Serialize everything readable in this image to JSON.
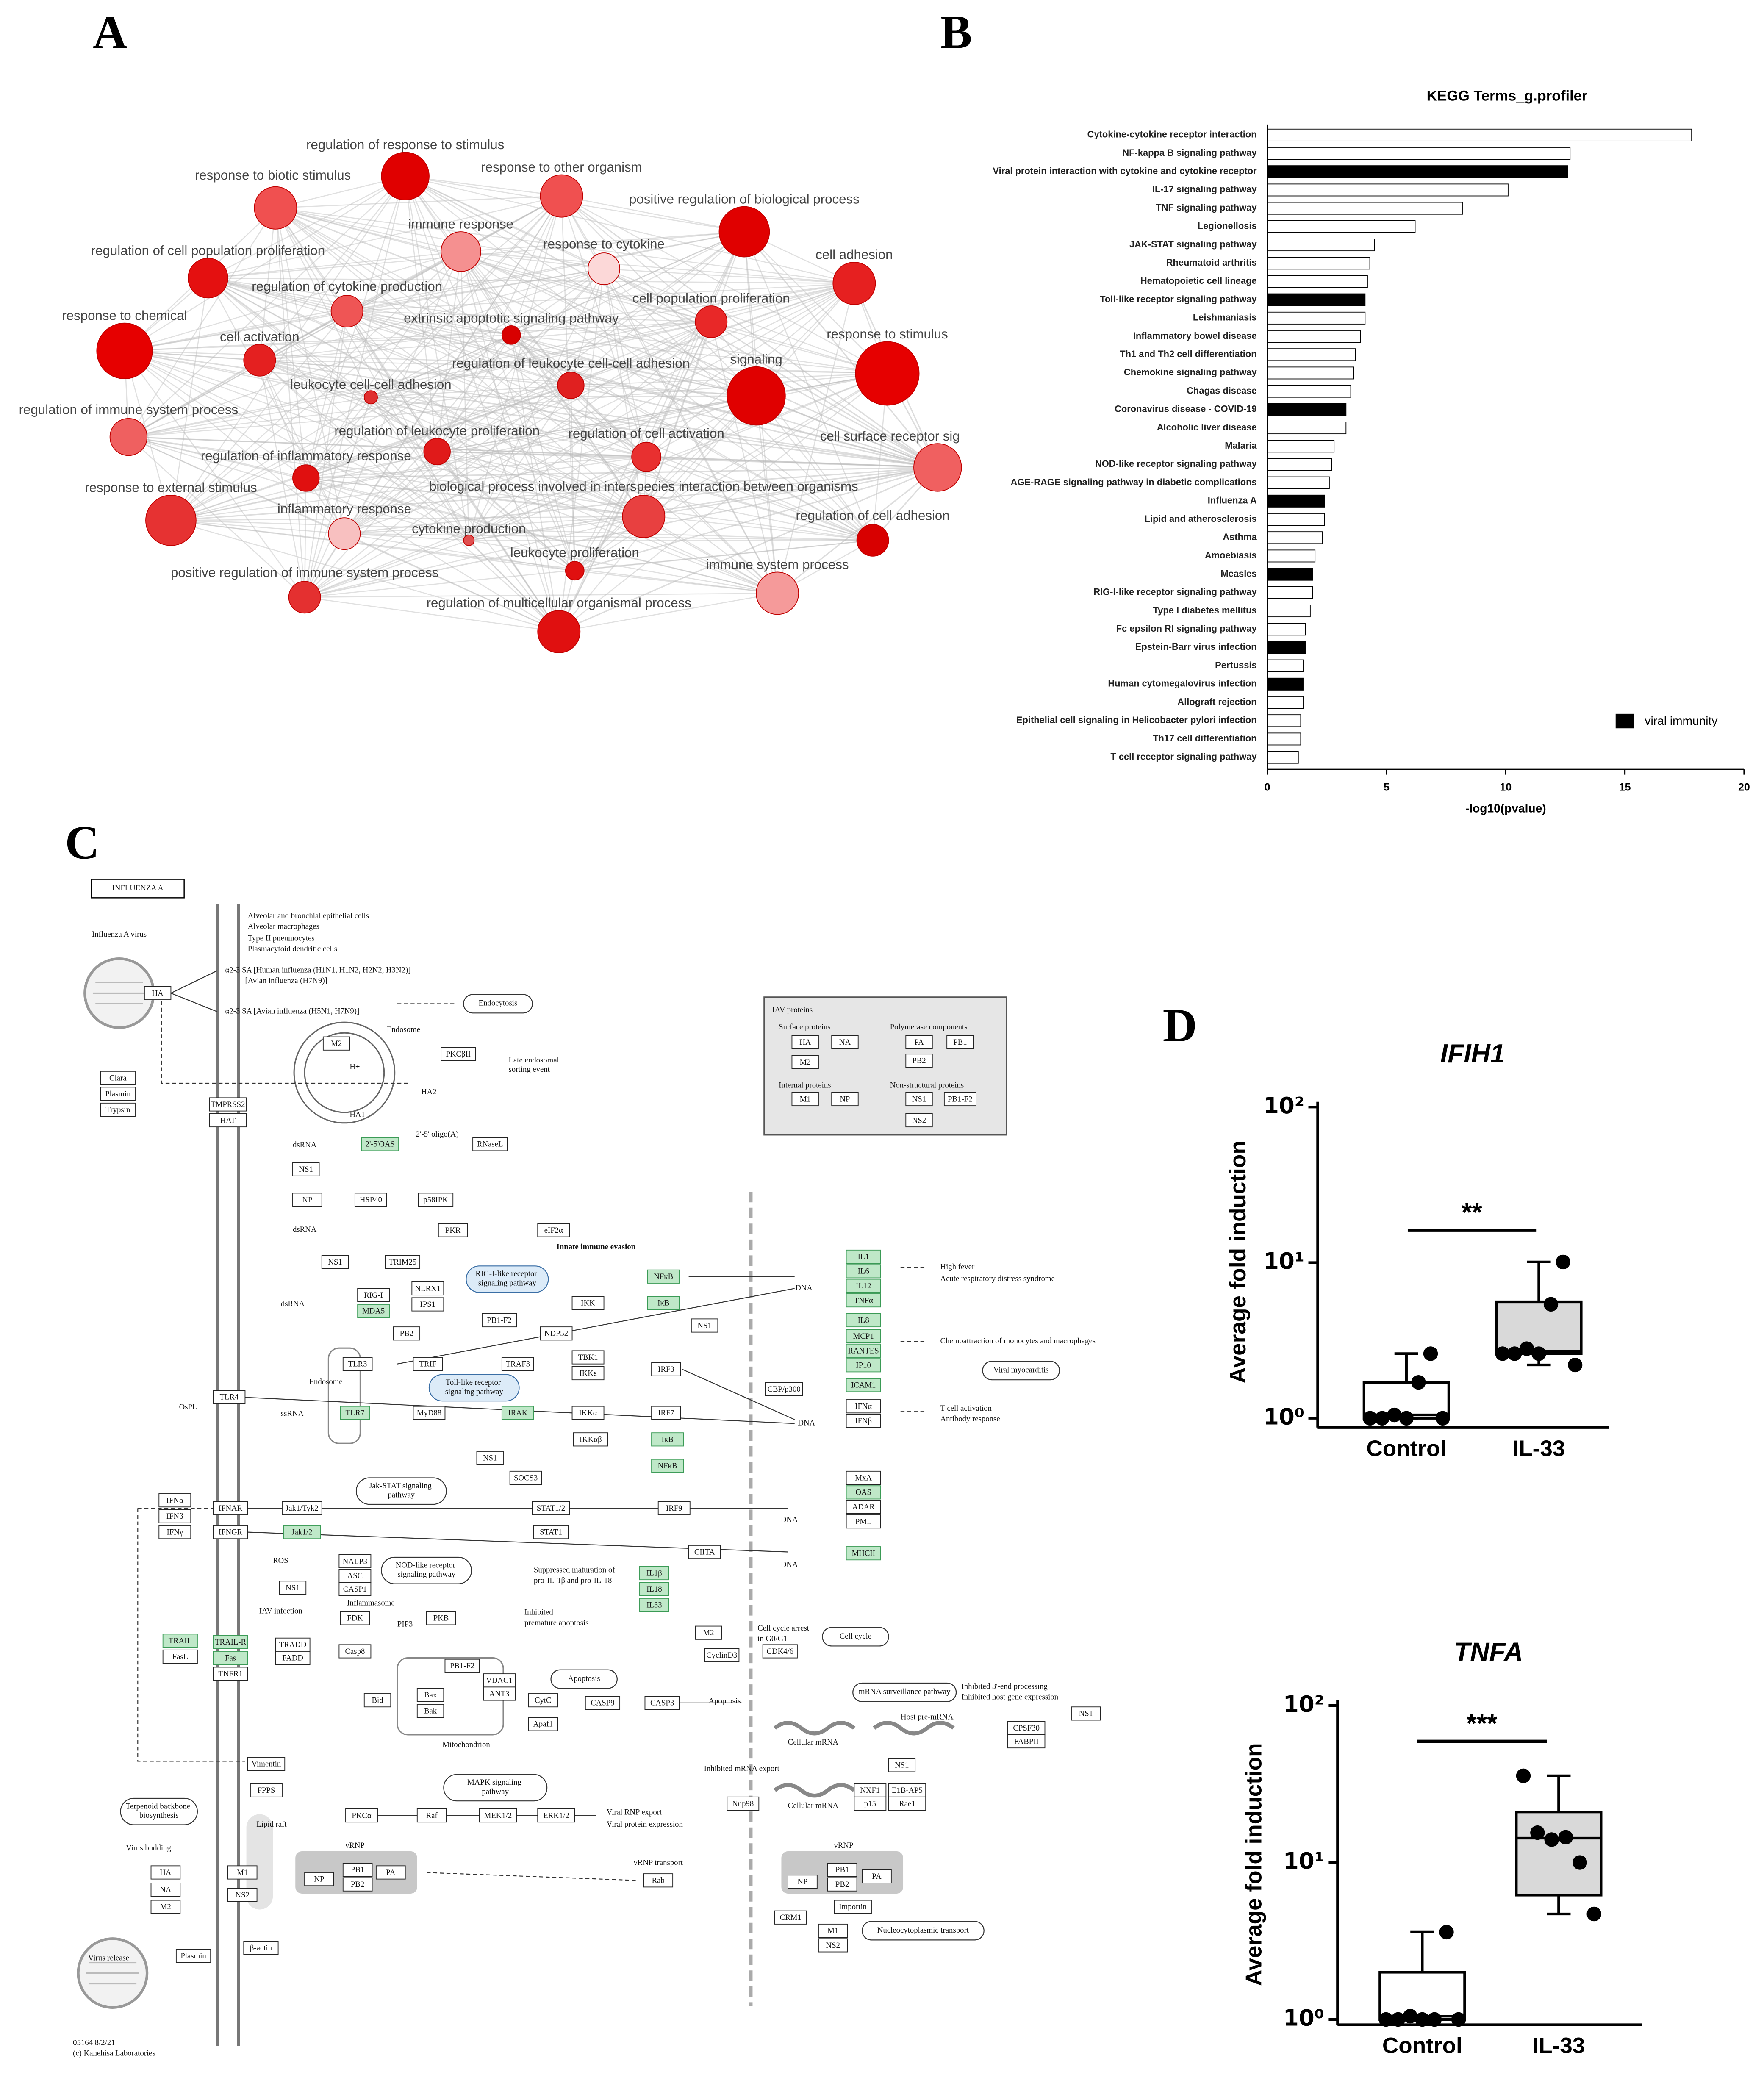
{
  "panels": [
    "A",
    "B",
    "C",
    "D"
  ],
  "network": {
    "nodes": [
      {
        "label": "regulation of response to stimulus",
        "color": "#e00000"
      },
      {
        "label": "response to biotic stimulus",
        "color": "#f05050"
      },
      {
        "label": "response to other organism",
        "color": "#f05050"
      },
      {
        "label": "positive regulation of biological process",
        "color": "#e00000"
      },
      {
        "label": "immune response",
        "color": "#f59090"
      },
      {
        "label": "response to cytokine",
        "color": "#fcd8d8"
      },
      {
        "label": "cell adhesion",
        "color": "#e62020"
      },
      {
        "label": "regulation of cell population proliferation",
        "color": "#e41010"
      },
      {
        "label": "regulation of cytokine production",
        "color": "#ef5555"
      },
      {
        "label": "cell population proliferation",
        "color": "#e82828"
      },
      {
        "label": "response to chemical",
        "color": "#e60000"
      },
      {
        "label": "extrinsic apoptotic signaling pathway",
        "color": "#d80000"
      },
      {
        "label": "response to stimulus",
        "color": "#e60000"
      },
      {
        "label": "cell activation",
        "color": "#e42020"
      },
      {
        "label": "regulation of leukocyte cell-cell adhesion",
        "color": "#e02020"
      },
      {
        "label": "signaling",
        "color": "#e00000"
      },
      {
        "label": "leukocyte cell-cell adhesion",
        "color": "#e03030"
      },
      {
        "label": "regulation of immune system process",
        "color": "#ef6060"
      },
      {
        "label": "cell surface receptor sig",
        "color": "#f06060"
      },
      {
        "label": "regulation of leukocyte proliferation",
        "color": "#e01a1a"
      },
      {
        "label": "regulation of cell activation",
        "color": "#e83030"
      },
      {
        "label": "regulation of inflammatory response",
        "color": "#e01010"
      },
      {
        "label": "biological process involved in interspecies interaction between organisms",
        "color": "#e84040"
      },
      {
        "label": "response to external stimulus",
        "color": "#e63232"
      },
      {
        "label": "inflammatory response",
        "color": "#f8c0c0"
      },
      {
        "label": "cytokine production",
        "color": "#e05050"
      },
      {
        "label": "regulation of cell adhesion",
        "color": "#d80000"
      },
      {
        "label": "leukocyte proliferation",
        "color": "#e01010"
      },
      {
        "label": "immune system process",
        "color": "#f59a9a"
      },
      {
        "label": "positive regulation of immune system process",
        "color": "#e43030"
      },
      {
        "label": "regulation of multicellular organismal process",
        "color": "#e01010"
      }
    ]
  },
  "chart_data": [
    {
      "type": "bar",
      "orientation": "horizontal",
      "title": "KEGG Terms_g.profiler",
      "xlabel": "-log10(pvalue)",
      "categories": [
        "Cytokine-cytokine receptor interaction",
        "NF-kappa B signaling pathway",
        "Viral protein interaction with cytokine and cytokine receptor",
        "IL-17 signaling pathway",
        "TNF signaling pathway",
        "Legionellosis",
        "JAK-STAT signaling pathway",
        "Rheumatoid arthritis",
        "Hematopoietic cell lineage",
        "Toll-like receptor signaling pathway",
        "Leishmaniasis",
        "Inflammatory bowel disease",
        "Th1 and Th2 cell differentiation",
        "Chemokine signaling pathway",
        "Chagas disease",
        "Coronavirus disease - COVID-19",
        "Alcoholic liver disease",
        "Malaria",
        "NOD-like receptor signaling pathway",
        "AGE-RAGE signaling pathway in diabetic complications",
        "Influenza A",
        "Lipid and atherosclerosis",
        "Asthma",
        "Amoebiasis",
        "Measles",
        "RIG-I-like receptor signaling pathway",
        "Type I diabetes mellitus",
        "Fc epsilon RI signaling pathway",
        "Epstein-Barr virus infection",
        "Pertussis",
        "Human cytomegalovirus infection",
        "Allograft rejection",
        "Epithelial cell signaling in Helicobacter pylori infection",
        "Th17 cell differentiation",
        "T cell receptor signaling pathway"
      ],
      "values": [
        17.8,
        12.7,
        12.6,
        10.1,
        8.2,
        6.2,
        4.5,
        4.3,
        4.2,
        4.1,
        4.1,
        3.9,
        3.7,
        3.6,
        3.5,
        3.3,
        3.3,
        2.8,
        2.7,
        2.6,
        2.4,
        2.4,
        2.3,
        2.0,
        1.9,
        1.9,
        1.8,
        1.6,
        1.6,
        1.5,
        1.5,
        1.5,
        1.4,
        1.4,
        1.3
      ],
      "colors": [
        "#ffffff",
        "#ffffff",
        "#000000",
        "#ffffff",
        "#ffffff",
        "#ffffff",
        "#ffffff",
        "#ffffff",
        "#ffffff",
        "#000000",
        "#ffffff",
        "#ffffff",
        "#ffffff",
        "#ffffff",
        "#ffffff",
        "#000000",
        "#ffffff",
        "#ffffff",
        "#ffffff",
        "#ffffff",
        "#000000",
        "#ffffff",
        "#ffffff",
        "#ffffff",
        "#000000",
        "#ffffff",
        "#ffffff",
        "#ffffff",
        "#000000",
        "#ffffff",
        "#000000",
        "#ffffff",
        "#ffffff",
        "#ffffff",
        "#ffffff"
      ],
      "xlim": [
        0,
        20
      ],
      "xticks": [
        0,
        5,
        10,
        15,
        20
      ],
      "legend": {
        "label": "viral immunity",
        "color": "#000000",
        "position": "lower right"
      }
    },
    {
      "type": "box",
      "title": "IFIH1",
      "ylabel": "Average fold induction",
      "log_y": true,
      "ylim": [
        1,
        100
      ],
      "yticks": [
        {
          "value": 1,
          "label": "10⁰"
        },
        {
          "value": 10,
          "label": "10¹"
        },
        {
          "value": 100,
          "label": "10²"
        }
      ],
      "categories": [
        "Control",
        "IL-33"
      ],
      "colors": [
        "#ffffff",
        "#d9d9d9"
      ],
      "boxes": [
        {
          "min": 1.0,
          "q1": 1.0,
          "median": 1.05,
          "q3": 1.7,
          "max": 2.6,
          "points": [
            1.0,
            1.0,
            1.05,
            1.0,
            1.7,
            2.6,
            1.0
          ]
        },
        {
          "min": 2.2,
          "q1": 2.6,
          "median": 2.7,
          "q3": 5.6,
          "max": 10.1,
          "points": [
            2.6,
            2.6,
            2.8,
            2.6,
            5.4,
            10.1,
            2.2
          ]
        }
      ],
      "significance": "**"
    },
    {
      "type": "box",
      "title": "TNFA",
      "ylabel": "Average fold induction",
      "log_y": true,
      "ylim": [
        1,
        100
      ],
      "yticks": [
        {
          "value": 1,
          "label": "10⁰"
        },
        {
          "value": 10,
          "label": "10¹"
        },
        {
          "value": 100,
          "label": "10²"
        }
      ],
      "categories": [
        "Control",
        "IL-33"
      ],
      "colors": [
        "#ffffff",
        "#d9d9d9"
      ],
      "boxes": [
        {
          "min": 1.0,
          "q1": 1.0,
          "median": 1.05,
          "q3": 2.0,
          "max": 3.6,
          "points": [
            1.0,
            1.0,
            1.05,
            1.0,
            1.0,
            3.6,
            1.0
          ]
        },
        {
          "min": 4.7,
          "q1": 6.2,
          "median": 14.3,
          "q3": 21,
          "max": 35.7,
          "points": [
            35.7,
            15.5,
            14,
            14.5,
            10,
            4.7
          ]
        }
      ],
      "significance": "***"
    }
  ],
  "pathway": {
    "title": "INFLUENZA A",
    "nodes": [
      "HA",
      "Clara",
      "Plasmin",
      "Trypsin",
      "TMPRSS2",
      "HAT",
      "M2",
      "PKCβII",
      "2'-5'OAS",
      "RNaseL",
      "NS1",
      "NP",
      "HSP40",
      "p58IPK",
      "PKR",
      "eIF2α",
      "NS1",
      "TRIM25",
      "RIG-I",
      "MDA5",
      "NLRX1",
      "IPS1",
      "PB1-F2",
      "PB2",
      "NDP52",
      "IKK",
      "NFκB",
      "IκB",
      "NS1",
      "TLR3",
      "TRIF",
      "TRAF3",
      "TBK1",
      "IKKε",
      "IRF3",
      "TLR4",
      "TLR7",
      "MyD88",
      "IRAK",
      "IKKα",
      "IRF7",
      "IKKαβ",
      "IκB",
      "NFκB",
      "NS1",
      "SOCS3",
      "IFNα",
      "IFNβ",
      "IFNγ",
      "IFNAR",
      "IFNGR",
      "Jak1/Tyk2",
      "Jak1/2",
      "STAT1/2",
      "IRF9",
      "STAT1",
      "CIITA",
      "NALP3",
      "ASC",
      "CASP1",
      "NS1",
      "IL1β",
      "IL18",
      "IL33",
      "FDK",
      "PKB",
      "TRAIL",
      "FasL",
      "TRAIL-R",
      "Fas",
      "TNFR1",
      "TRADD",
      "FADD",
      "Casp8",
      "PB1-F2",
      "VDAC1",
      "ANT3",
      "CytC",
      "Bid",
      "Bax",
      "Bak",
      "CASP9",
      "CASP3",
      "Apaf1",
      "M2",
      "CyclinD3",
      "CDK4/6",
      "IL1",
      "IL6",
      "IL12",
      "TNFα",
      "IL8",
      "MCP1",
      "RANTES",
      "IP10",
      "ICAM1",
      "IFNα",
      "IFNβ",
      "MxA",
      "OAS",
      "ADAR",
      "PML",
      "MHCII",
      "CPSF30",
      "FABPII",
      "NS1",
      "NS1",
      "NXF1",
      "E1B-AP5",
      "p15",
      "Rae1",
      "Nup98",
      "Vimentin",
      "FPPS",
      "PKCα",
      "Raf",
      "MEK1/2",
      "ERK1/2",
      "HA",
      "NA",
      "M2",
      "M1",
      "NS2",
      "NP",
      "PB1",
      "PB2",
      "PA",
      "Rab",
      "NP",
      "PB1",
      "PB2",
      "PA",
      "CRM1",
      "M1",
      "NS2",
      "Importin",
      "Plasmin",
      "β-actin",
      "HA",
      "NA",
      "M2",
      "PA",
      "PB1",
      "PB2",
      "M1",
      "NP",
      "NS1",
      "PB1-F2",
      "NS2",
      "CBP/p300"
    ],
    "pathways": [
      "Endocytosis",
      "RIG-I-like receptor signaling pathway",
      "Toll-like receptor signaling pathway",
      "Jak-STAT signaling pathway",
      "NOD-like receptor signaling pathway",
      "Apoptosis",
      "MAPK signaling pathway",
      "Cell cycle",
      "Viral myocarditis",
      "mRNA surveillance pathway",
      "Nucleocytoplasmic transport",
      "Terpenoid backbone biosynthesis"
    ],
    "notes": [
      "Alveolar and bronchial epithelial cells",
      "Alveolar macrophages",
      "Type II pneumocytes",
      "Plasmacytoid dendritic cells",
      "Influenza A virus",
      "α2-3 SA [Human influenza (H1N1, H1N2, H2N2, H3N2)]",
      "[Avian influenza (H7N9)]",
      "α2-3 SA [Avian influenza (H5N1, H7N9)]",
      "Endosome",
      "H+",
      "HA1",
      "HA2",
      "Late endosomal",
      "sorting event",
      "dsRNA",
      "2'-5' oligo(A)",
      "dsRNA",
      "Innate immune evasion",
      "dsRNA",
      "Endosome",
      "ssRNA",
      "OsPL",
      "High fever",
      "Acute respiratory distress syndrome",
      "Chemoattraction of monocytes and macrophages",
      "T cell activation",
      "Antibody response",
      "DNA",
      "DNA",
      "DNA",
      "DNA",
      "ROS",
      "Inflammasome",
      "IAV infection",
      "PIP3",
      "Inhibited",
      "premature apoptosis",
      "Suppressed maturation of",
      "pro-IL-1β and pro-IL-18",
      "Mitochondrion",
      "Apoptosis",
      "Cell cycle arrest",
      "in G0/G1",
      "Inhibited 3'-end processing",
      "Inhibited host gene expression",
      "Host pre-mRNA",
      "Cellular mRNA",
      "Inhibited mRNA export",
      "Cellular mRNA",
      "Lipid raft",
      "Viral RNP export",
      "Viral protein expression",
      "Virus budding",
      "vRNP",
      "vRNP",
      "vRNP transport",
      "Virus release",
      "05164 8/2/21",
      "(c) Kanehisa Laboratories",
      "Surface proteins",
      "Polymerase components",
      "Internal proteins",
      "Non-structural proteins",
      "IAV proteins"
    ]
  }
}
